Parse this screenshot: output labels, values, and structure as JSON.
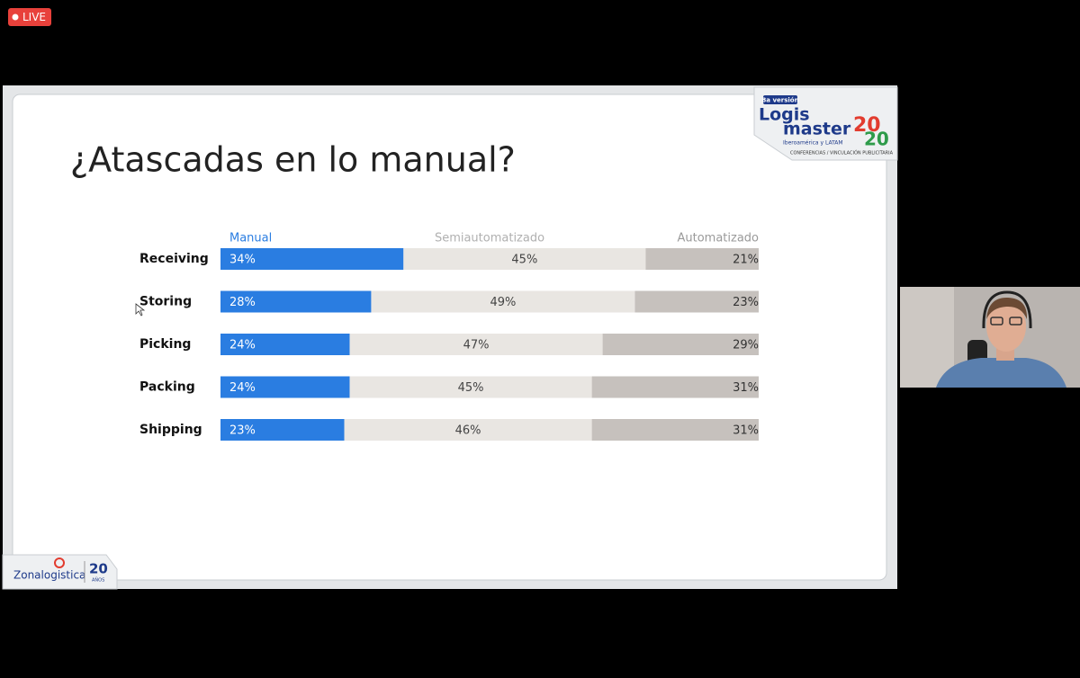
{
  "live_badge": "LIVE",
  "slide": {
    "logo": {
      "edition": "8a versión",
      "word1": "Logis",
      "word2": "master",
      "year_top": "20",
      "year_bottom": "20",
      "region": "Iberoamérica y LATAM",
      "tagline": "CONFERENCIAS / VINCULACIÓN PUBLICITARIA"
    },
    "footer": {
      "brand": "Zonalogistica",
      "years": "20",
      "years_word": "AÑOS"
    }
  },
  "chart_data": {
    "type": "bar",
    "orientation": "horizontal",
    "stacked": true,
    "title": "¿Atascadas en lo manual?",
    "categories": [
      "Receiving",
      "Storing",
      "Picking",
      "Packing",
      "Shipping"
    ],
    "xlim": [
      0,
      100
    ],
    "series": [
      {
        "name": "Manual",
        "color": "#2a7de1",
        "values": [
          34,
          28,
          24,
          24,
          23
        ],
        "value_labels": [
          "34%",
          "28%",
          "24%",
          "24%",
          "23%"
        ]
      },
      {
        "name": "Semiautomatizado",
        "color": "#e9e6e2",
        "values": [
          45,
          49,
          47,
          45,
          46
        ],
        "value_labels": [
          "45%",
          "49%",
          "47%",
          "45%",
          "46%"
        ]
      },
      {
        "name": "Automatizado",
        "color": "#c6c1bd",
        "values": [
          21,
          23,
          29,
          31,
          31
        ],
        "value_labels": [
          "21%",
          "23%",
          "29%",
          "31%",
          "31%"
        ]
      }
    ]
  }
}
